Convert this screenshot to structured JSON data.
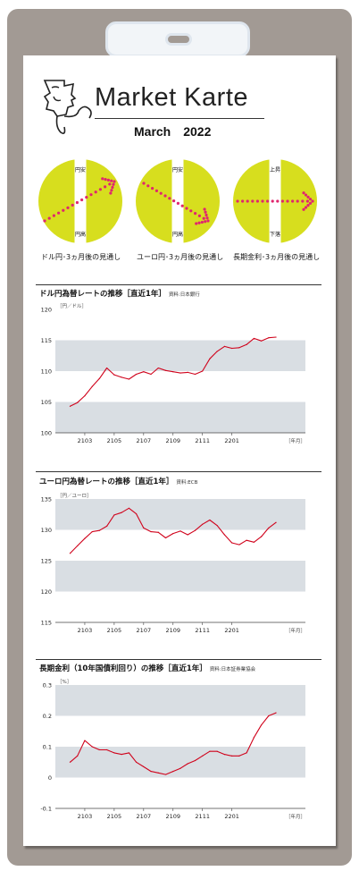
{
  "header": {
    "title": "Market Karte",
    "subtitle": "March　2022"
  },
  "outlooks": [
    {
      "caption": "ドル円･3ヵ月後の見通し",
      "top_label": "円安",
      "bottom_label": "円高",
      "direction": "up"
    },
    {
      "caption": "ユーロ円･3ヵ月後の見通し",
      "top_label": "円安",
      "bottom_label": "円高",
      "direction": "down"
    },
    {
      "caption": "長期金利･3ヵ月後の見通し",
      "top_label": "上昇",
      "bottom_label": "下落",
      "direction": "flat"
    }
  ],
  "colors": {
    "circle": "#d7de1e",
    "arrow": "#e0266e",
    "band": "#d9dee3",
    "line": "#d0021b",
    "frame": "#a29a94"
  },
  "chart_data": [
    {
      "type": "line",
      "title": "ドル円為替レートの推移［直近1年］",
      "source": "資料:日本銀行",
      "unit_label": "［円／ドル］",
      "xlabel_unit": "［年月］",
      "ylim": [
        100,
        120
      ],
      "yticks": [
        "120",
        "115",
        "110",
        "105",
        "100"
      ],
      "ytick_values": [
        120,
        115,
        110,
        105,
        100
      ],
      "bands": [
        [
          110,
          115
        ],
        [
          100,
          105
        ]
      ],
      "xticks": [
        "2103",
        "2105",
        "2107",
        "2109",
        "2111",
        "2201"
      ],
      "x": [
        0,
        0.5,
        1.0,
        1.5,
        2.0,
        2.5,
        3.0,
        3.5,
        4.0,
        4.5,
        5.0,
        5.5,
        6.0,
        6.5,
        7.0,
        7.5,
        8.0,
        8.5,
        9.0,
        9.5,
        10.0,
        10.5,
        11.0,
        11.5,
        12.0,
        12.5,
        13.0,
        13.5,
        14.0
      ],
      "values": [
        104.3,
        104.9,
        106.0,
        107.5,
        108.8,
        110.5,
        109.4,
        109.0,
        108.7,
        109.5,
        109.9,
        109.5,
        110.5,
        110.1,
        109.9,
        109.7,
        109.8,
        109.5,
        110.0,
        112.0,
        113.2,
        114.0,
        113.7,
        113.8,
        114.3,
        115.3,
        114.9,
        115.4,
        115.5
      ]
    },
    {
      "type": "line",
      "title": "ユーロ円為替レートの推移［直近1年］",
      "source": "資料:ECB",
      "unit_label": "［円／ユーロ］",
      "xlabel_unit": "［年月］",
      "ylim": [
        115,
        135
      ],
      "yticks": [
        "135",
        "130",
        "125",
        "120",
        "115"
      ],
      "ytick_values": [
        135,
        130,
        125,
        120,
        115
      ],
      "bands": [
        [
          130,
          135
        ],
        [
          120,
          125
        ]
      ],
      "xticks": [
        "2103",
        "2105",
        "2107",
        "2109",
        "2111",
        "2201"
      ],
      "x": [
        0,
        0.5,
        1.0,
        1.5,
        2.0,
        2.5,
        3.0,
        3.5,
        4.0,
        4.5,
        5.0,
        5.5,
        6.0,
        6.5,
        7.0,
        7.5,
        8.0,
        8.5,
        9.0,
        9.5,
        10.0,
        10.5,
        11.0,
        11.5,
        12.0,
        12.5,
        13.0,
        13.5,
        14.0
      ],
      "values": [
        126.2,
        127.4,
        128.6,
        129.7,
        129.9,
        130.6,
        132.4,
        132.8,
        133.5,
        132.6,
        130.3,
        129.7,
        129.6,
        128.7,
        129.4,
        129.8,
        129.2,
        129.9,
        130.9,
        131.6,
        130.7,
        129.2,
        127.9,
        127.6,
        128.3,
        128.0,
        128.9,
        130.3,
        131.2
      ]
    },
    {
      "type": "line",
      "title": "長期金利（10年国債利回り）の推移［直近1年］",
      "source": "資料:日本証券業協会",
      "unit_label": "［%］",
      "xlabel_unit": "［年月］",
      "ylim": [
        -0.1,
        0.3
      ],
      "yticks": [
        "0.3",
        "0.2",
        "0.1",
        "0",
        "-0.1"
      ],
      "ytick_values": [
        0.3,
        0.2,
        0.1,
        0,
        -0.1
      ],
      "bands": [
        [
          0.2,
          0.3
        ],
        [
          0,
          0.1
        ]
      ],
      "xticks": [
        "2103",
        "2105",
        "2107",
        "2109",
        "2111",
        "2201"
      ],
      "x": [
        0,
        0.5,
        1.0,
        1.5,
        2.0,
        2.5,
        3.0,
        3.5,
        4.0,
        4.5,
        5.0,
        5.5,
        6.0,
        6.5,
        7.0,
        7.5,
        8.0,
        8.5,
        9.0,
        9.5,
        10.0,
        10.5,
        11.0,
        11.5,
        12.0,
        12.5,
        13.0,
        13.5,
        14.0
      ],
      "values": [
        0.05,
        0.07,
        0.12,
        0.1,
        0.09,
        0.09,
        0.08,
        0.075,
        0.08,
        0.05,
        0.035,
        0.02,
        0.015,
        0.01,
        0.02,
        0.03,
        0.045,
        0.055,
        0.07,
        0.085,
        0.085,
        0.075,
        0.07,
        0.07,
        0.08,
        0.13,
        0.17,
        0.2,
        0.21
      ]
    }
  ]
}
